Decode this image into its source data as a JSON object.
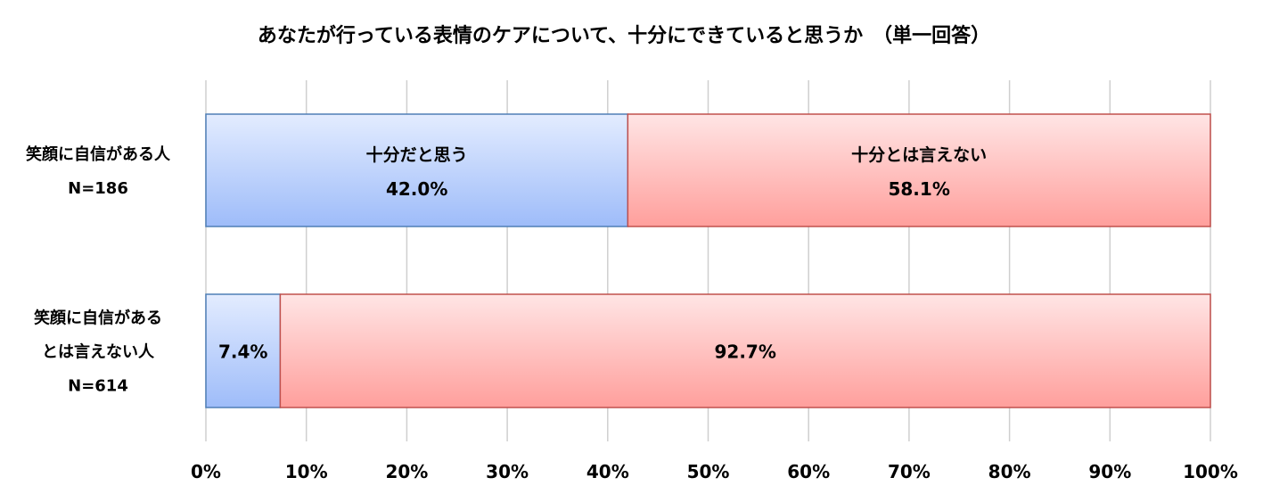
{
  "chart_data": {
    "type": "bar",
    "orientation": "horizontal",
    "stacked": true,
    "title": "あなたが行っている表情のケアについて、十分にできていると思うか　（単一回答）",
    "categories": [
      [
        "笑顔に自信がある人",
        "N=186"
      ],
      [
        "笑顔に自信がある",
        "とは言えない人",
        "N=614"
      ]
    ],
    "series": [
      {
        "name": "十分だと思う",
        "values": [
          42.0,
          7.4
        ],
        "labels": [
          "42.0%",
          "7.4%"
        ],
        "color_top": "#e3ecff",
        "color_bottom": "#9ebcf9",
        "stroke": "#4f7fb6"
      },
      {
        "name": "十分とは言えない",
        "values": [
          58.1,
          92.7
        ],
        "labels": [
          "58.1%",
          "92.7%"
        ],
        "color_top": "#ffe5e5",
        "color_bottom": "#ff9f9c",
        "stroke": "#c0504d"
      }
    ],
    "segment_name_labels": [
      [
        "十分だと思う",
        "十分とは言えない"
      ],
      []
    ],
    "xlim": [
      0,
      100
    ],
    "xticks": [
      "0%",
      "10%",
      "20%",
      "30%",
      "40%",
      "50%",
      "60%",
      "70%",
      "80%",
      "90%",
      "100%"
    ],
    "grid": true,
    "legend": "none"
  }
}
